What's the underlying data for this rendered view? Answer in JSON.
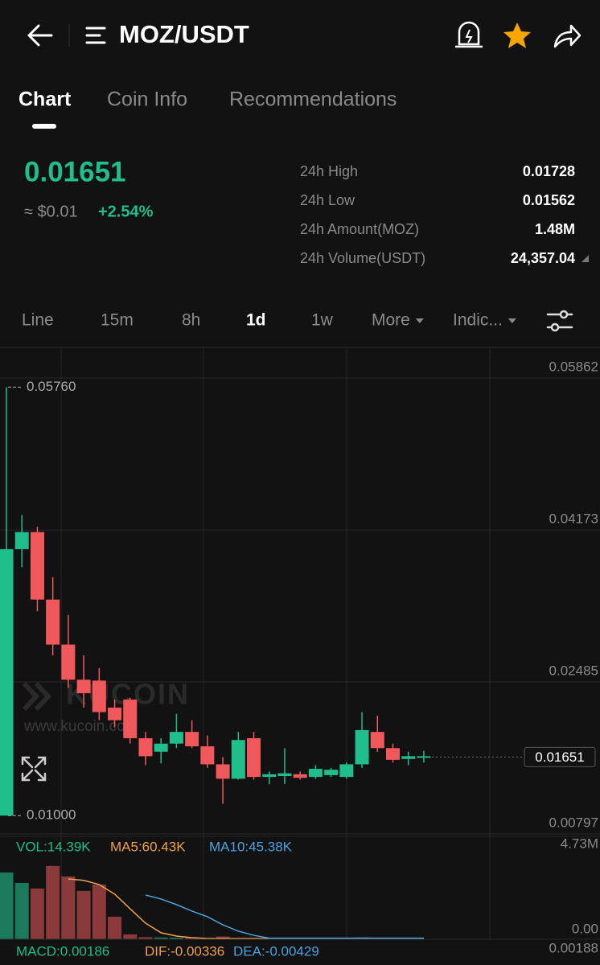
{
  "header": {
    "title": "MOZ/USDT"
  },
  "tabs": [
    "Chart",
    "Coin Info",
    "Recommendations"
  ],
  "price": {
    "last": "0.01651",
    "usd": "≈ $0.01",
    "change": "+2.54%"
  },
  "stats": [
    {
      "label": "24h High",
      "value": "0.01728"
    },
    {
      "label": "24h Low",
      "value": "0.01562"
    },
    {
      "label": "24h Amount(MOZ)",
      "value": "1.48M"
    },
    {
      "label": "24h Volume(USDT)",
      "value": "24,357.04"
    }
  ],
  "timeframes": [
    "Line",
    "15m",
    "8h",
    "1d",
    "1w",
    "More",
    "Indic..."
  ],
  "chart_data": {
    "type": "candlestick",
    "open": [
      0.01,
      0.0396,
      0.0415,
      0.034,
      0.029,
      0.0251,
      0.025,
      0.022,
      0.0229,
      0.0186,
      0.0171,
      0.018,
      0.0193,
      0.0177,
      0.0157,
      0.0141,
      0.0186,
      0.0143,
      0.0144,
      0.0146,
      0.0143,
      0.0145,
      0.0143,
      0.0157,
      0.0193,
      0.0175,
      0.0163,
      0.0165
    ],
    "high": [
      0.0576,
      0.0434,
      0.0421,
      0.0365,
      0.0323,
      0.0278,
      0.0264,
      0.0229,
      0.0231,
      0.0193,
      0.0186,
      0.0213,
      0.0206,
      0.0189,
      0.0165,
      0.0193,
      0.0193,
      0.0149,
      0.0175,
      0.0149,
      0.0156,
      0.0153,
      0.0159,
      0.0215,
      0.0211,
      0.018,
      0.0171,
      0.0172
    ],
    "low": [
      0.01,
      0.0376,
      0.0327,
      0.0278,
      0.0242,
      0.022,
      0.0206,
      0.0198,
      0.018,
      0.0156,
      0.0158,
      0.0175,
      0.0175,
      0.0153,
      0.0113,
      0.014,
      0.014,
      0.0135,
      0.0135,
      0.014,
      0.0141,
      0.0143,
      0.0141,
      0.0153,
      0.0171,
      0.0159,
      0.0156,
      0.0159
    ],
    "close": [
      0.0396,
      0.0415,
      0.034,
      0.029,
      0.0251,
      0.0236,
      0.0215,
      0.0206,
      0.0186,
      0.0166,
      0.018,
      0.0193,
      0.0177,
      0.0157,
      0.0141,
      0.0184,
      0.0143,
      0.0146,
      0.0147,
      0.0142,
      0.0152,
      0.0151,
      0.0157,
      0.0195,
      0.0175,
      0.0162,
      0.0166,
      0.0166
    ],
    "up_color": "#1fbe8c",
    "down_color": "#f0585c",
    "ylim": [
      0.0077,
      0.0613
    ],
    "yticks": [
      0.00797,
      0.02485,
      0.04173,
      0.05862
    ],
    "grid": true,
    "max_marker": {
      "value": 0.0576,
      "label": "0.05760"
    },
    "min_marker": {
      "value": 0.01,
      "label": "0.01000"
    },
    "last_price": 0.01651,
    "watermark": "KUCOIN",
    "watermark_url": "www.kucoin.com"
  },
  "volume": {
    "type": "bar",
    "label": "VOL:14.39K",
    "values": [
      3700000,
      3120000,
      2810000,
      4060000,
      3480000,
      2680000,
      3030000,
      1250000,
      270000,
      120000,
      100000,
      90000,
      110000,
      80000,
      150000,
      60000,
      70000,
      40000,
      50000,
      30000,
      40000,
      30000,
      40000,
      100000,
      60000,
      40000,
      30000,
      20000
    ],
    "ylim": [
      0,
      5700000
    ],
    "yticks": [
      {
        "value": 0,
        "label": "0.00"
      },
      {
        "value": 4730000,
        "label": "4.73M"
      }
    ],
    "series": [
      {
        "name": "MA5:60.43K",
        "color": "#f0a04b",
        "values": [
          null,
          null,
          null,
          null,
          3340000,
          3260000,
          3030000,
          2500000,
          1690000,
          890000,
          360000,
          180000,
          90000,
          40000,
          40000,
          40000,
          40000,
          40000,
          40000,
          40000,
          40000,
          40000,
          40000,
          40000,
          40000,
          40000,
          40000,
          40000
        ]
      },
      {
        "name": "MA10:45.38K",
        "color": "#4aa3df",
        "values": [
          null,
          null,
          null,
          null,
          null,
          null,
          null,
          null,
          null,
          2450000,
          2230000,
          1920000,
          1560000,
          1250000,
          800000,
          450000,
          220000,
          60000,
          60000,
          60000,
          60000,
          60000,
          60000,
          60000,
          60000,
          60000,
          60000,
          60000
        ]
      }
    ]
  },
  "macd": {
    "labels": [
      {
        "text": "MACD:0.00186",
        "color": "#1fbe8c"
      },
      {
        "text": "DIF:-0.00336",
        "color": "#f0a04b"
      },
      {
        "text": "DEA:-0.00429",
        "color": "#4aa3df"
      }
    ],
    "axis_label": "0.00188"
  }
}
